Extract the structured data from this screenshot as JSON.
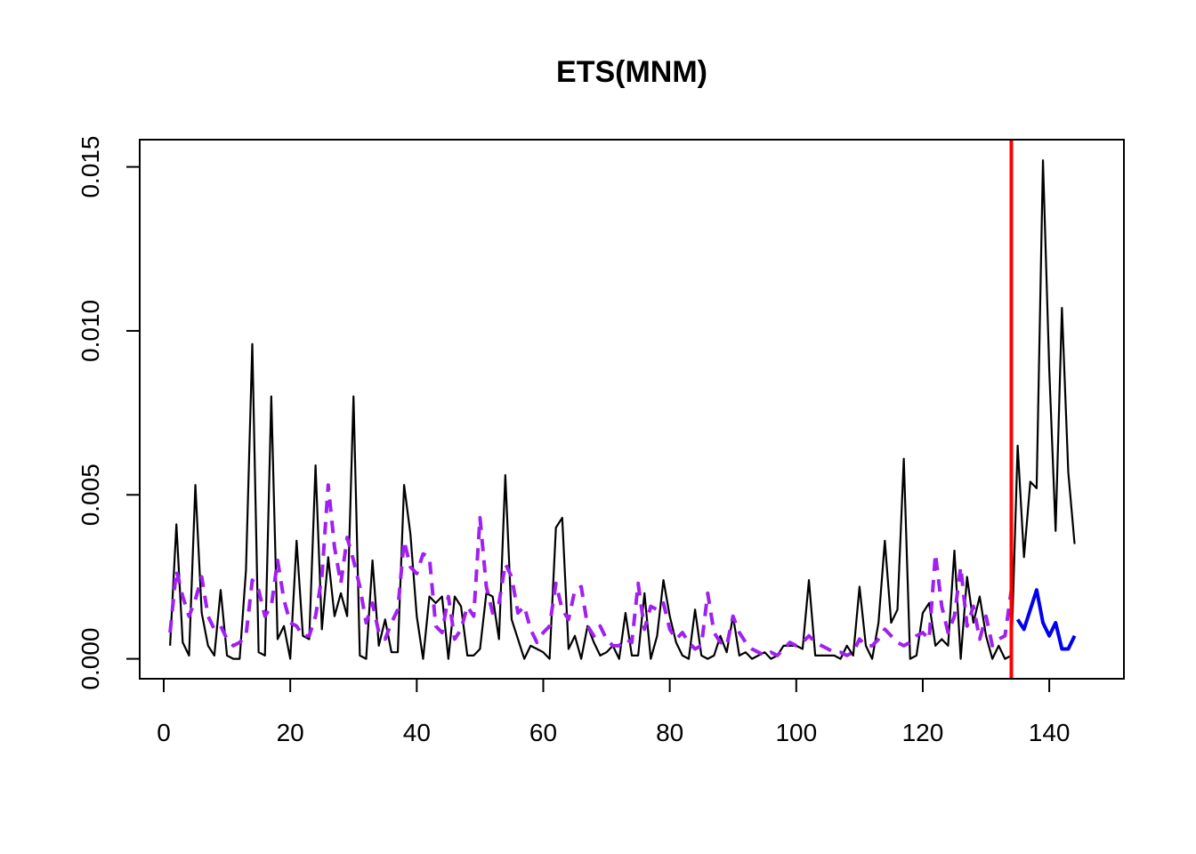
{
  "chart_data": {
    "type": "line",
    "title": "ETS(MNM)",
    "xlabel": "",
    "ylabel": "",
    "xlim": [
      -3.8,
      151.8
    ],
    "ylim": [
      -0.000608,
      0.01583
    ],
    "x_ticks": [
      0,
      20,
      40,
      60,
      80,
      100,
      120,
      140
    ],
    "x_tick_labels": [
      "0",
      "20",
      "40",
      "60",
      "80",
      "100",
      "120",
      "140"
    ],
    "y_ticks": [
      0.0,
      0.005,
      0.01,
      0.015
    ],
    "y_tick_labels": [
      "0.000",
      "0.005",
      "0.010",
      "0.015"
    ],
    "grid": false,
    "legend": "none",
    "holdout_start": 134,
    "colors": {
      "actuals": "#000000",
      "fitted": "#a020f0",
      "forecast": "#0000ee",
      "holdout_line": "#ff0000"
    },
    "series": [
      {
        "role": "actuals",
        "x_start": 1,
        "values": [
          0.0004,
          0.0041,
          0.0005,
          0.0001,
          0.0053,
          0.0014,
          0.0004,
          0.0001,
          0.0021,
          0.0001,
          0.0,
          0.0,
          0.0027,
          0.0096,
          0.0002,
          0.0001,
          0.008,
          0.0006,
          0.001,
          0.0,
          0.0036,
          0.0007,
          0.0006,
          0.0059,
          0.0009,
          0.0031,
          0.0013,
          0.002,
          0.0013,
          0.008,
          0.0001,
          0.0,
          0.003,
          0.0004,
          0.0012,
          0.0002,
          0.0002,
          0.0053,
          0.0038,
          0.0013,
          0.0,
          0.0019,
          0.0017,
          0.0019,
          0.0,
          0.0019,
          0.0016,
          0.0001,
          0.0001,
          0.0003,
          0.002,
          0.0019,
          0.0006,
          0.0056,
          0.0012,
          0.0006,
          0.0,
          0.0004,
          0.0003,
          0.0002,
          0.0,
          0.004,
          0.0043,
          0.0003,
          0.0007,
          0.0,
          0.001,
          0.0005,
          0.0001,
          0.0002,
          0.0004,
          0.0,
          0.0014,
          0.0001,
          0.0001,
          0.002,
          0.0,
          0.0007,
          0.0024,
          0.0013,
          0.0005,
          0.0001,
          0.0,
          0.0015,
          0.0001,
          0.0,
          0.0001,
          0.0007,
          0.0002,
          0.0013,
          0.0001,
          0.0002,
          0.0,
          0.0001,
          0.0002,
          0.0,
          0.0001,
          0.0004,
          0.0004,
          0.0004,
          0.0003,
          0.0024,
          0.0001,
          0.0001,
          0.0001,
          0.0001,
          0.0,
          0.0004,
          0.0001,
          0.0022,
          0.0004,
          0.0,
          0.0011,
          0.0036,
          0.0011,
          0.0015,
          0.0061,
          0.0,
          0.0001,
          0.0014,
          0.0017,
          0.0004,
          0.0006,
          0.0004,
          0.0033,
          0.0,
          0.0025,
          0.0011,
          0.0019,
          0.0007,
          0.0,
          0.0004,
          0.0,
          0.0001,
          0.0065,
          0.0031,
          0.0054,
          0.0052,
          0.0152,
          0.0088,
          0.0039,
          0.0107,
          0.0057,
          0.0035
        ]
      },
      {
        "role": "fitted",
        "x_start": 1,
        "values": [
          0.0008,
          0.0027,
          0.0019,
          0.0013,
          0.0018,
          0.0025,
          0.0013,
          0.0009,
          0.001,
          0.0006,
          0.0004,
          0.0005,
          0.0007,
          0.0024,
          0.0021,
          0.0013,
          0.0016,
          0.003,
          0.0018,
          0.0011,
          0.001,
          0.0007,
          0.0007,
          0.0013,
          0.0025,
          0.0053,
          0.0034,
          0.0023,
          0.0037,
          0.003,
          0.0022,
          0.0011,
          0.0017,
          0.0008,
          0.0006,
          0.0011,
          0.0015,
          0.0036,
          0.0028,
          0.0026,
          0.0032,
          0.0031,
          0.001,
          0.0008,
          0.0019,
          0.0006,
          0.0009,
          0.0016,
          0.0013,
          0.0043,
          0.0022,
          0.0014,
          0.0017,
          0.0029,
          0.0025,
          0.0014,
          0.0016,
          0.0009,
          0.0005,
          0.0008,
          0.001,
          0.0023,
          0.0015,
          0.0012,
          0.0021,
          0.0022,
          0.001,
          0.0007,
          0.001,
          0.0006,
          0.0004,
          0.0004,
          0.0006,
          0.0005,
          0.0023,
          0.0009,
          0.0016,
          0.0015,
          0.0017,
          0.0009,
          0.0006,
          0.0008,
          0.0005,
          0.0003,
          0.0004,
          0.002,
          0.0008,
          0.0005,
          0.0004,
          0.0013,
          0.0008,
          0.0005,
          0.0003,
          0.0002,
          0.0001,
          0.0002,
          0.0001,
          0.0003,
          0.0005,
          0.0004,
          0.0005,
          0.0007,
          0.0005,
          0.0004,
          0.0003,
          0.0002,
          0.0002,
          0.0001,
          0.0002,
          0.0006,
          0.0004,
          0.0004,
          0.0006,
          0.0009,
          0.0007,
          0.0005,
          0.0004,
          0.0005,
          0.0007,
          0.0008,
          0.0006,
          0.0032,
          0.0016,
          0.0008,
          0.0013,
          0.0028,
          0.001,
          0.0016,
          0.0006,
          0.0013,
          0.0004,
          0.0006,
          0.0007,
          0.0021
        ]
      },
      {
        "role": "forecast",
        "x_start": 135,
        "values": [
          0.0012,
          0.0009,
          0.0015,
          0.0021,
          0.0011,
          0.0007,
          0.0011,
          0.0003,
          0.0003,
          0.0007
        ]
      }
    ]
  }
}
